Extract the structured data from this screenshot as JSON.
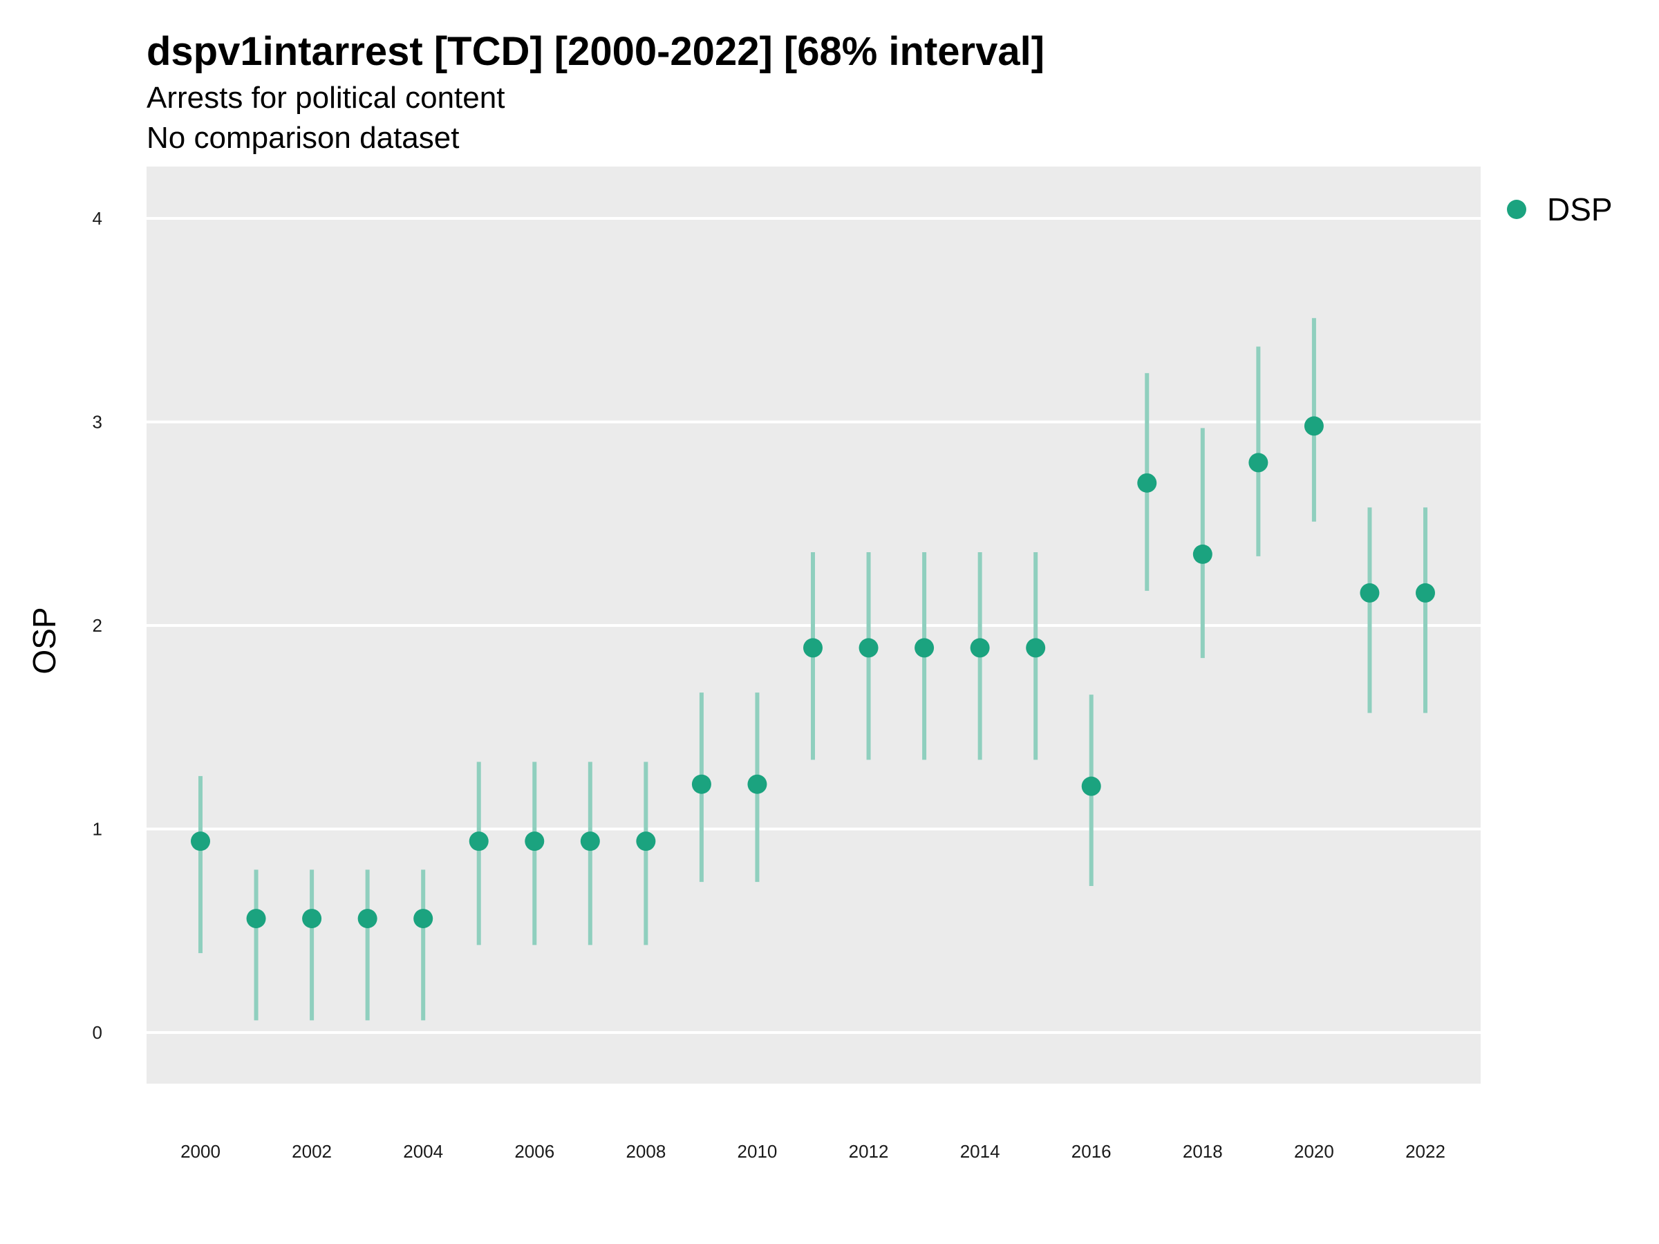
{
  "chart_data": {
    "type": "scatter",
    "title": "dspv1intarrest [TCD] [2000-2022] [68% interval]",
    "subtitle_lines": [
      "Arrests for political content",
      "No comparison dataset"
    ],
    "xlabel": "",
    "ylabel": "OSP",
    "x_ticks": [
      2000,
      2002,
      2004,
      2006,
      2008,
      2010,
      2012,
      2014,
      2016,
      2018,
      2020,
      2022
    ],
    "y_ticks": [
      0,
      1,
      2,
      3,
      4
    ],
    "xlim": [
      1999.0,
      2023.0
    ],
    "ylim": [
      -0.25,
      4.25
    ],
    "grid": true,
    "legend_position": "right",
    "colors": {
      "point": "#1BA37F",
      "interval": "#8FCFBE",
      "panel_bg": "#EBEBEB",
      "grid": "#FFFFFF"
    },
    "series": [
      {
        "name": "DSP",
        "points": [
          {
            "x": 2000,
            "y": 0.94,
            "lower": 0.39,
            "upper": 1.26
          },
          {
            "x": 2001,
            "y": 0.56,
            "lower": 0.06,
            "upper": 0.8
          },
          {
            "x": 2002,
            "y": 0.56,
            "lower": 0.06,
            "upper": 0.8
          },
          {
            "x": 2003,
            "y": 0.56,
            "lower": 0.06,
            "upper": 0.8
          },
          {
            "x": 2004,
            "y": 0.56,
            "lower": 0.06,
            "upper": 0.8
          },
          {
            "x": 2005,
            "y": 0.94,
            "lower": 0.43,
            "upper": 1.33
          },
          {
            "x": 2006,
            "y": 0.94,
            "lower": 0.43,
            "upper": 1.33
          },
          {
            "x": 2007,
            "y": 0.94,
            "lower": 0.43,
            "upper": 1.33
          },
          {
            "x": 2008,
            "y": 0.94,
            "lower": 0.43,
            "upper": 1.33
          },
          {
            "x": 2009,
            "y": 1.22,
            "lower": 0.74,
            "upper": 1.67
          },
          {
            "x": 2010,
            "y": 1.22,
            "lower": 0.74,
            "upper": 1.67
          },
          {
            "x": 2011,
            "y": 1.89,
            "lower": 1.34,
            "upper": 2.36
          },
          {
            "x": 2012,
            "y": 1.89,
            "lower": 1.34,
            "upper": 2.36
          },
          {
            "x": 2013,
            "y": 1.89,
            "lower": 1.34,
            "upper": 2.36
          },
          {
            "x": 2014,
            "y": 1.89,
            "lower": 1.34,
            "upper": 2.36
          },
          {
            "x": 2015,
            "y": 1.89,
            "lower": 1.34,
            "upper": 2.36
          },
          {
            "x": 2016,
            "y": 1.21,
            "lower": 0.72,
            "upper": 1.66
          },
          {
            "x": 2017,
            "y": 2.7,
            "lower": 2.17,
            "upper": 3.24
          },
          {
            "x": 2018,
            "y": 2.35,
            "lower": 1.84,
            "upper": 2.97
          },
          {
            "x": 2019,
            "y": 2.8,
            "lower": 2.34,
            "upper": 3.37
          },
          {
            "x": 2020,
            "y": 2.98,
            "lower": 2.51,
            "upper": 3.51
          },
          {
            "x": 2021,
            "y": 2.16,
            "lower": 1.57,
            "upper": 2.58
          },
          {
            "x": 2022,
            "y": 2.16,
            "lower": 1.57,
            "upper": 2.58
          }
        ]
      }
    ]
  }
}
